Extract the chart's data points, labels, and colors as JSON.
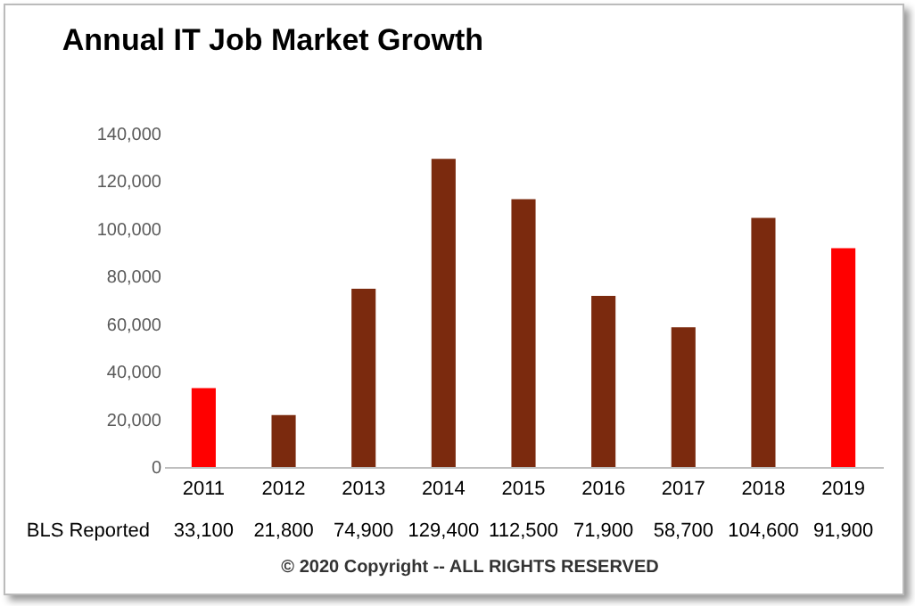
{
  "chart_data": {
    "type": "bar",
    "title": "Annual IT Job Market Growth",
    "categories": [
      "2011",
      "2012",
      "2013",
      "2014",
      "2015",
      "2016",
      "2017",
      "2018",
      "2019"
    ],
    "values": [
      33100,
      21800,
      74900,
      129400,
      112500,
      71900,
      58700,
      104600,
      91900
    ],
    "colors": [
      "#ff0000",
      "#7b2a0e",
      "#7b2a0e",
      "#7b2a0e",
      "#7b2a0e",
      "#7b2a0e",
      "#7b2a0e",
      "#7b2a0e",
      "#ff0000"
    ],
    "value_labels": [
      "33,100",
      "21,800",
      "74,900",
      "129,400",
      "112,500",
      "71,900",
      "58,700",
      "104,600",
      "91,900"
    ],
    "ylim": [
      0,
      140000
    ],
    "yticks": [
      0,
      {
        "value": 20000,
        "label": "20,000"
      },
      {
        "value": 40000,
        "label": "40,000"
      },
      {
        "value": 60000,
        "label": "60,000"
      },
      {
        "value": 80000,
        "label": "80,000"
      },
      {
        "value": 100000,
        "label": "100,000"
      },
      {
        "value": 120000,
        "label": "120,000"
      },
      {
        "value": 140000,
        "label": "140,000"
      }
    ],
    "annotations": [
      "BLS Reported",
      "© 2020 Copyright -- ALL RIGHTS RESERVED"
    ]
  }
}
